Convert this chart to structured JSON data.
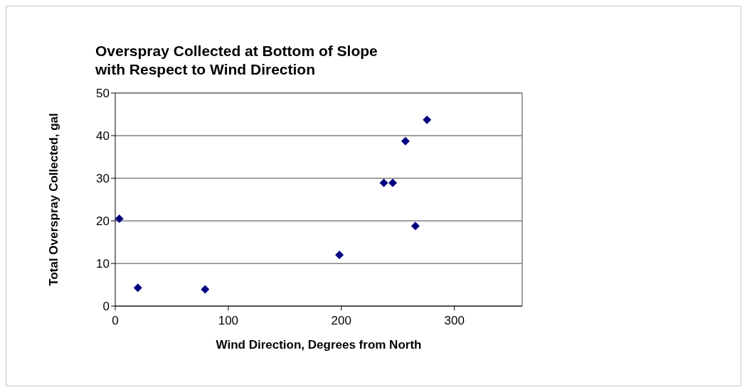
{
  "chart_data": {
    "type": "scatter",
    "title": "Overspray Collected at Bottom of Slope\nwith Respect to Wind Direction",
    "xlabel": "Wind Direction, Degrees from North",
    "ylabel": "Total Overspray Collected, gal",
    "x": [
      3.6,
      20,
      79.5,
      198.3,
      237.6,
      245.5,
      256.7,
      265.5,
      275.8
    ],
    "series": [
      {
        "color": "#000080",
        "values": [
          20.5,
          4.3,
          3.9,
          12.0,
          28.9,
          28.9,
          38.7,
          18.8,
          43.7
        ]
      }
    ],
    "xlim": [
      0,
      360
    ],
    "xticks": [
      0,
      100,
      200,
      300
    ],
    "ylim": [
      0,
      50
    ],
    "yticks": [
      0,
      10,
      20,
      30,
      40,
      50
    ],
    "grid": "y",
    "marker": "diamond",
    "legend": false
  }
}
